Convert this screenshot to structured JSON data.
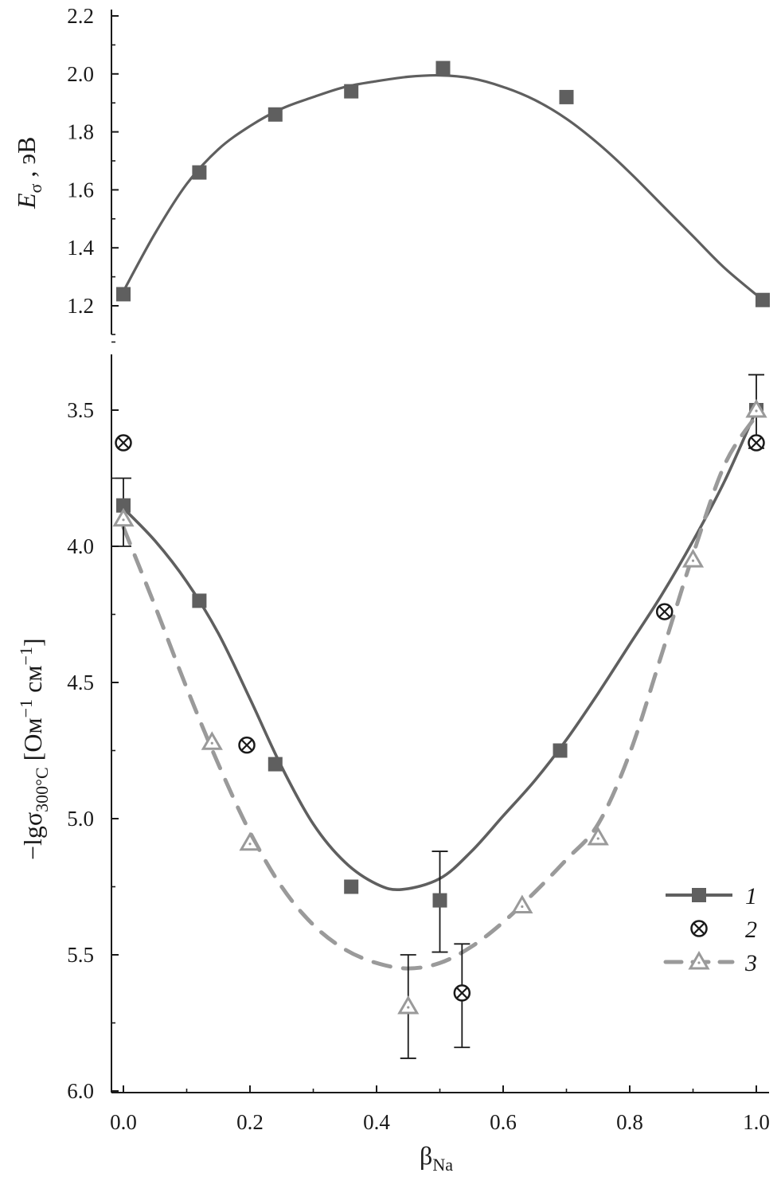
{
  "chart_data": [
    {
      "type": "line",
      "panel": "top",
      "ylabel": {
        "main": "E",
        "sub": "σ",
        "unit": " , эВ"
      },
      "xlabel": "",
      "xlim": [
        -0.02,
        1.02
      ],
      "ylim": [
        1.15,
        2.2
      ],
      "yticks": [
        "1.2",
        "1.4",
        "1.6",
        "1.8",
        "2.0",
        "2.2"
      ],
      "grid": false,
      "series": [
        {
          "color": "#5f5f5f",
          "marker": "square",
          "line": "solid",
          "points": [
            {
              "x": 0.0,
              "y": 1.24
            },
            {
              "x": 0.12,
              "y": 1.66
            },
            {
              "x": 0.24,
              "y": 1.86
            },
            {
              "x": 0.36,
              "y": 1.94
            },
            {
              "x": 0.505,
              "y": 2.02
            },
            {
              "x": 0.7,
              "y": 1.92
            },
            {
              "x": 1.01,
              "y": 1.22
            }
          ],
          "fit": [
            {
              "x": 0.0,
              "y": 1.25
            },
            {
              "x": 0.05,
              "y": 1.45
            },
            {
              "x": 0.1,
              "y": 1.62
            },
            {
              "x": 0.15,
              "y": 1.74
            },
            {
              "x": 0.2,
              "y": 1.82
            },
            {
              "x": 0.25,
              "y": 1.88
            },
            {
              "x": 0.3,
              "y": 1.92
            },
            {
              "x": 0.35,
              "y": 1.955
            },
            {
              "x": 0.4,
              "y": 1.975
            },
            {
              "x": 0.45,
              "y": 1.99
            },
            {
              "x": 0.5,
              "y": 1.995
            },
            {
              "x": 0.55,
              "y": 1.985
            },
            {
              "x": 0.6,
              "y": 1.955
            },
            {
              "x": 0.65,
              "y": 1.91
            },
            {
              "x": 0.7,
              "y": 1.845
            },
            {
              "x": 0.75,
              "y": 1.76
            },
            {
              "x": 0.8,
              "y": 1.66
            },
            {
              "x": 0.85,
              "y": 1.55
            },
            {
              "x": 0.9,
              "y": 1.44
            },
            {
              "x": 0.95,
              "y": 1.33
            },
            {
              "x": 1.01,
              "y": 1.22
            }
          ]
        }
      ]
    },
    {
      "type": "line",
      "panel": "bottom",
      "ylabel": {
        "main": "−lgσ",
        "sub": "300°C",
        "unit": " [Ом",
        "sup1": "−1",
        "unit2": " см",
        "sup2": "−1",
        "close": "]"
      },
      "xlabel": {
        "main": "β",
        "sub": "Na"
      },
      "xlim": [
        -0.02,
        1.02
      ],
      "ylim": [
        3.3,
        6.0
      ],
      "yticks": [
        "3.5",
        "4.0",
        "4.5",
        "5.0",
        "5.5",
        "6.0"
      ],
      "xticks": [
        "0.0",
        "0.2",
        "0.4",
        "0.6",
        "0.8",
        "1.0"
      ],
      "grid": false,
      "legend_position": "bottom-right",
      "series": [
        {
          "name": "1",
          "color": "#5f5f5f",
          "marker": "square",
          "line": "solid",
          "points": [
            {
              "x": 0.0,
              "y": 3.85,
              "err": [
                3.75,
                4.0
              ]
            },
            {
              "x": 0.12,
              "y": 4.2
            },
            {
              "x": 0.24,
              "y": 4.8
            },
            {
              "x": 0.36,
              "y": 5.25
            },
            {
              "x": 0.5,
              "y": 5.3,
              "err": [
                5.12,
                5.49
              ]
            },
            {
              "x": 0.69,
              "y": 4.75
            },
            {
              "x": 1.0,
              "y": 3.5,
              "err": [
                3.37,
                3.64
              ]
            }
          ],
          "fit": [
            {
              "x": 0.0,
              "y": 3.86
            },
            {
              "x": 0.05,
              "y": 3.98
            },
            {
              "x": 0.1,
              "y": 4.13
            },
            {
              "x": 0.15,
              "y": 4.32
            },
            {
              "x": 0.2,
              "y": 4.56
            },
            {
              "x": 0.25,
              "y": 4.81
            },
            {
              "x": 0.3,
              "y": 5.02
            },
            {
              "x": 0.35,
              "y": 5.16
            },
            {
              "x": 0.4,
              "y": 5.24
            },
            {
              "x": 0.44,
              "y": 5.26
            },
            {
              "x": 0.5,
              "y": 5.22
            },
            {
              "x": 0.55,
              "y": 5.12
            },
            {
              "x": 0.6,
              "y": 4.99
            },
            {
              "x": 0.65,
              "y": 4.86
            },
            {
              "x": 0.7,
              "y": 4.71
            },
            {
              "x": 0.75,
              "y": 4.54
            },
            {
              "x": 0.8,
              "y": 4.36
            },
            {
              "x": 0.85,
              "y": 4.18
            },
            {
              "x": 0.9,
              "y": 3.98
            },
            {
              "x": 0.95,
              "y": 3.76
            },
            {
              "x": 1.0,
              "y": 3.5
            }
          ]
        },
        {
          "name": "2",
          "color": "#1a1a1a",
          "marker": "circle-x",
          "line": "none",
          "points": [
            {
              "x": 0.0,
              "y": 3.62
            },
            {
              "x": 0.195,
              "y": 4.73
            },
            {
              "x": 0.535,
              "y": 5.64,
              "err": [
                5.46,
                5.84
              ]
            },
            {
              "x": 0.855,
              "y": 4.24
            },
            {
              "x": 1.0,
              "y": 3.62
            }
          ]
        },
        {
          "name": "3",
          "color": "#9a9a9a",
          "marker": "triangle",
          "line": "dashed",
          "points": [
            {
              "x": 0.0,
              "y": 3.9
            },
            {
              "x": 0.14,
              "y": 4.72
            },
            {
              "x": 0.2,
              "y": 5.09
            },
            {
              "x": 0.45,
              "y": 5.69,
              "err": [
                5.5,
                5.88
              ]
            },
            {
              "x": 0.63,
              "y": 5.32
            },
            {
              "x": 0.75,
              "y": 5.07
            },
            {
              "x": 0.9,
              "y": 4.05
            },
            {
              "x": 1.0,
              "y": 3.5
            }
          ],
          "fit": [
            {
              "x": 0.0,
              "y": 3.93
            },
            {
              "x": 0.05,
              "y": 4.22
            },
            {
              "x": 0.1,
              "y": 4.52
            },
            {
              "x": 0.15,
              "y": 4.8
            },
            {
              "x": 0.2,
              "y": 5.05
            },
            {
              "x": 0.25,
              "y": 5.25
            },
            {
              "x": 0.3,
              "y": 5.39
            },
            {
              "x": 0.35,
              "y": 5.48
            },
            {
              "x": 0.4,
              "y": 5.53
            },
            {
              "x": 0.45,
              "y": 5.55
            },
            {
              "x": 0.5,
              "y": 5.53
            },
            {
              "x": 0.55,
              "y": 5.47
            },
            {
              "x": 0.6,
              "y": 5.38
            },
            {
              "x": 0.65,
              "y": 5.27
            },
            {
              "x": 0.7,
              "y": 5.15
            },
            {
              "x": 0.75,
              "y": 5.02
            },
            {
              "x": 0.8,
              "y": 4.76
            },
            {
              "x": 0.85,
              "y": 4.4
            },
            {
              "x": 0.9,
              "y": 4.03
            },
            {
              "x": 0.95,
              "y": 3.7
            },
            {
              "x": 1.0,
              "y": 3.52
            }
          ]
        }
      ]
    }
  ]
}
